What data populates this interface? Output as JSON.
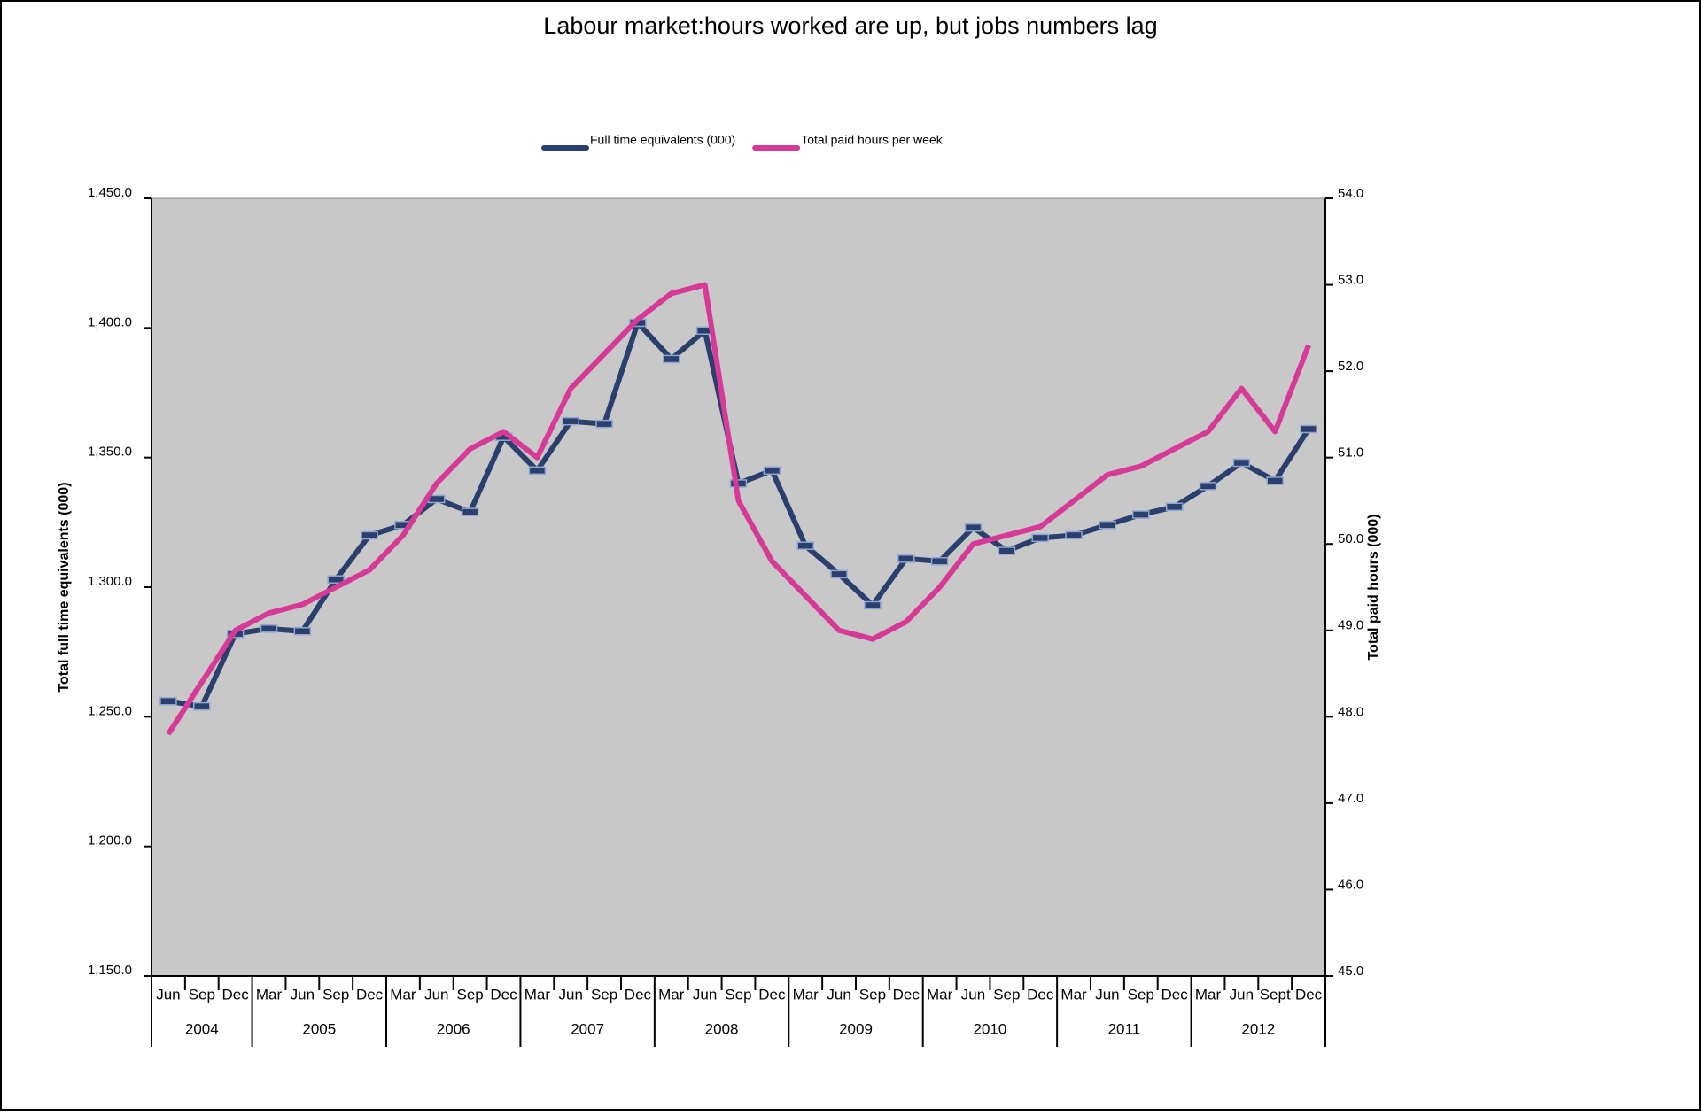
{
  "chart_data": {
    "type": "line",
    "title": "Labour market:hours worked are up, but jobs numbers lag",
    "legend": "top",
    "plot_background": "#c8c8c8",
    "ylabel": "Total full time equivalents (000)",
    "y2label": "Total paid hours (000)",
    "years": [
      {
        "label": "2004",
        "categories": [
          "Jun",
          "Sep",
          "Dec"
        ]
      },
      {
        "label": "2005",
        "categories": [
          "Mar",
          "Jun",
          "Sep",
          "Dec"
        ]
      },
      {
        "label": "2006",
        "categories": [
          "Mar",
          "Jun",
          "Sep",
          "Dec"
        ]
      },
      {
        "label": "2007",
        "categories": [
          "Mar",
          "Jun",
          "Sep",
          "Dec"
        ]
      },
      {
        "label": "2008",
        "categories": [
          "Mar",
          "Jun",
          "Sep",
          "Dec"
        ]
      },
      {
        "label": "2009",
        "categories": [
          "Mar",
          "Jun",
          "Sep",
          "Dec"
        ]
      },
      {
        "label": "2010",
        "categories": [
          "Mar",
          "Jun",
          "Sep",
          "Dec"
        ]
      },
      {
        "label": "2011",
        "categories": [
          "Mar",
          "Jun",
          "Sep",
          "Dec"
        ]
      },
      {
        "label": "2012",
        "categories": [
          "Mar",
          "Jun",
          "Sept",
          "Dec"
        ]
      }
    ],
    "series": [
      {
        "name": "Full time equivalents (000)",
        "color": "#2a3f6e",
        "axis": "y",
        "markers": true,
        "values": [
          1256,
          1254,
          1282,
          1284,
          1283,
          1303,
          1320,
          1324,
          1334,
          1329,
          1358,
          1345,
          1364,
          1363,
          1402,
          1388,
          1399,
          1340,
          1345,
          1316,
          1305,
          1293,
          1311,
          1310,
          1323,
          1314,
          1319,
          1320,
          1324,
          1328,
          1331,
          1339,
          1348,
          1341,
          1361
        ]
      },
      {
        "name": "Total paid hours per week",
        "color": "#d63a96",
        "axis": "y2",
        "markers": false,
        "values": [
          47.8,
          48.4,
          49.0,
          49.2,
          49.3,
          49.5,
          49.7,
          50.1,
          50.7,
          51.1,
          51.3,
          51.0,
          51.8,
          52.2,
          52.6,
          52.9,
          53.0,
          50.5,
          49.8,
          49.4,
          49.0,
          48.9,
          49.1,
          49.5,
          50.0,
          50.1,
          50.2,
          50.5,
          50.8,
          50.9,
          51.1,
          51.3,
          51.8,
          51.3,
          52.3
        ]
      }
    ],
    "ylim": [
      1150,
      1450
    ],
    "yticks": [
      {
        "value": 1150,
        "label": "1,150.0"
      },
      {
        "value": 1200,
        "label": "1,200.0"
      },
      {
        "value": 1250,
        "label": "1,250.0"
      },
      {
        "value": 1300,
        "label": "1,300.0"
      },
      {
        "value": 1350,
        "label": "1,350.0"
      },
      {
        "value": 1400,
        "label": "1,400.0"
      },
      {
        "value": 1450,
        "label": "1,450.0"
      }
    ],
    "y2lim": [
      45,
      54
    ],
    "y2ticks": [
      {
        "value": 45,
        "label": "45.0"
      },
      {
        "value": 46,
        "label": "46.0"
      },
      {
        "value": 47,
        "label": "47.0"
      },
      {
        "value": 48,
        "label": "48.0"
      },
      {
        "value": 49,
        "label": "49.0"
      },
      {
        "value": 50,
        "label": "50.0"
      },
      {
        "value": 51,
        "label": "51.0"
      },
      {
        "value": 52,
        "label": "52.0"
      },
      {
        "value": 53,
        "label": "53.0"
      },
      {
        "value": 54,
        "label": "54.0"
      }
    ]
  }
}
